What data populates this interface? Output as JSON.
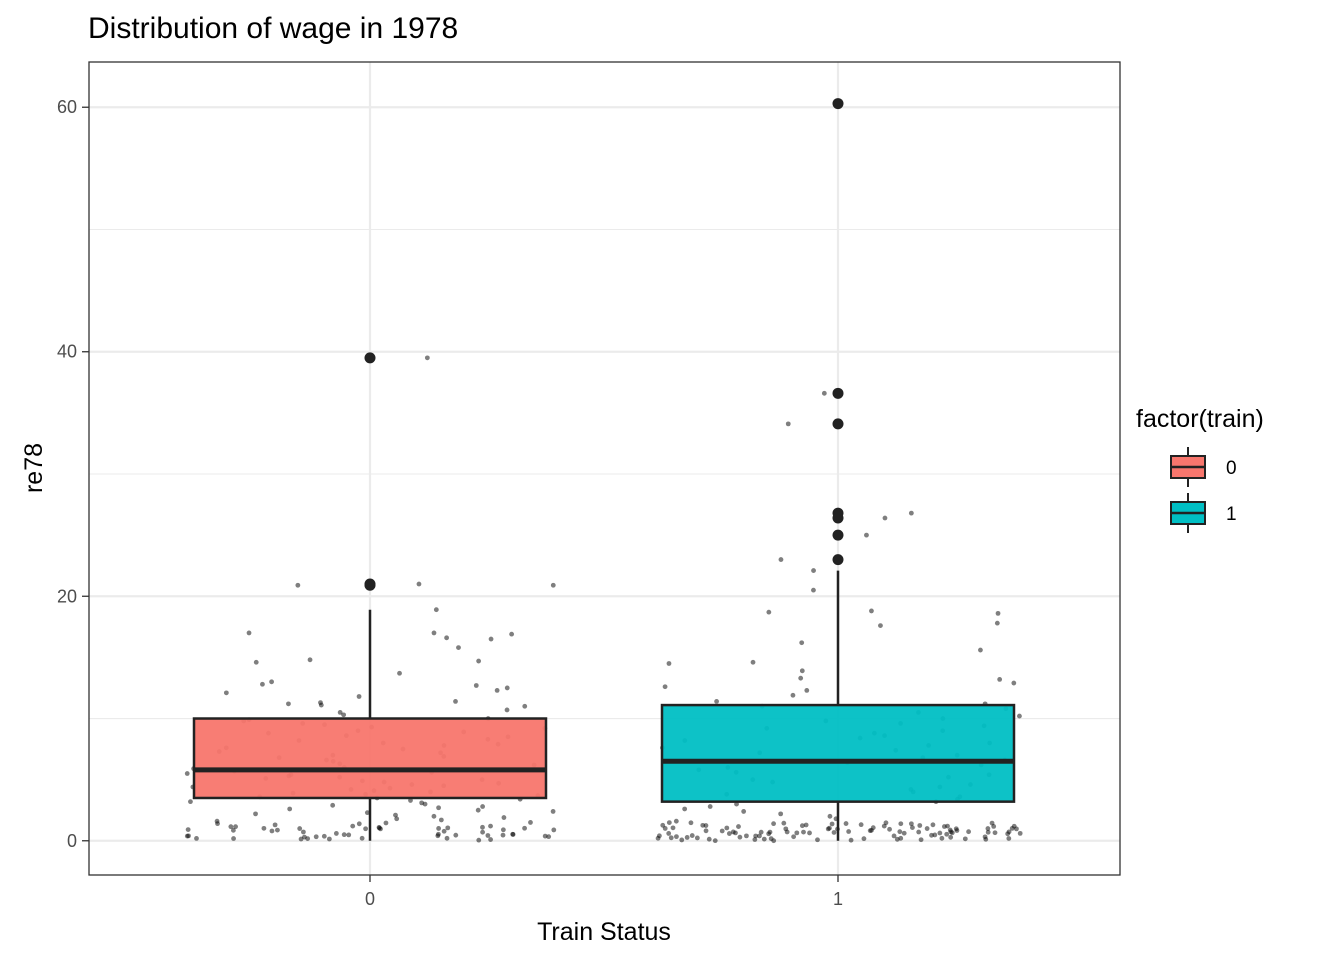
{
  "chart_data": {
    "type": "boxplot",
    "title": "Distribution of wage in 1978",
    "xlabel": "Train Status",
    "ylabel": "re78",
    "categories": [
      "0",
      "1"
    ],
    "ylim": [
      -2.8,
      63.7
    ],
    "yticks": [
      0,
      20,
      40,
      60
    ],
    "grid": true,
    "legend": {
      "title": "factor(train)",
      "position": "right",
      "entries": [
        {
          "label": "0",
          "color": "#F8766D"
        },
        {
          "label": "1",
          "color": "#00BFC4"
        }
      ]
    },
    "boxes": [
      {
        "category": "0",
        "min": 0,
        "q1": 3.5,
        "median": 5.8,
        "q3": 10.0,
        "max": 18.9,
        "outliers": [
          20.9,
          21.0,
          39.5
        ],
        "color": "#F8766D"
      },
      {
        "category": "1",
        "min": 0,
        "q1": 3.2,
        "median": 6.5,
        "q3": 11.1,
        "max": 22.1,
        "outliers": [
          23.0,
          25.0,
          26.4,
          26.8,
          34.1,
          36.6,
          60.3
        ],
        "color": "#00BFC4"
      }
    ],
    "jitter": [
      {
        "category": "0",
        "y": [
          39.5,
          20.9,
          21.0,
          20.9,
          18.9,
          17.0,
          17.0,
          16.9,
          16.6,
          16.5,
          15.8,
          14.8,
          14.7,
          14.6,
          13.7,
          13.0,
          12.8,
          12.7,
          12.5,
          12.3,
          12.1,
          11.8,
          11.4,
          11.3,
          11.2,
          11.1,
          11.0,
          10.7,
          10.5,
          10.3,
          10.0,
          9.9,
          9.8,
          9.6,
          9.5,
          9.3,
          9.2,
          9.0,
          8.9,
          8.8,
          8.6,
          8.5,
          8.3,
          8.2,
          8.0,
          7.9,
          7.8,
          7.6,
          7.5,
          7.3,
          7.2,
          7.0,
          6.9,
          6.8,
          6.6,
          6.5,
          6.3,
          6.2,
          6.0,
          5.9,
          5.8,
          5.7,
          5.6,
          5.5,
          5.4,
          5.3,
          5.2,
          5.1,
          5.0,
          4.9,
          4.8,
          4.7,
          4.6,
          4.5,
          4.4,
          4.3,
          4.2,
          4.1,
          4.0,
          3.9,
          3.8,
          3.7,
          3.6,
          3.5,
          3.4,
          3.3,
          3.2,
          3.1,
          3.0,
          2.9,
          2.8,
          2.7,
          2.6,
          2.5,
          2.4,
          2.3,
          2.2,
          2.1,
          2.0,
          1.9,
          1.8,
          1.7,
          1.6,
          1.5,
          1.4,
          1.3,
          1.2,
          1.1,
          1.0,
          0.9,
          0.8,
          0.7,
          0.6,
          0.5,
          0.4,
          0.3,
          0.2,
          0.1,
          0.05,
          0,
          0,
          0,
          0,
          0,
          0,
          0,
          0,
          0,
          0,
          0,
          0,
          0,
          0,
          0,
          0,
          0,
          0,
          0,
          0,
          0,
          0,
          0,
          0,
          0,
          0,
          0,
          0,
          0,
          0,
          0,
          0,
          0,
          0,
          0,
          0,
          0,
          0
        ]
      },
      {
        "category": "1",
        "y": [
          60.3,
          36.6,
          34.1,
          26.8,
          26.4,
          25.0,
          23.0,
          22.1,
          20.5,
          18.8,
          18.7,
          18.6,
          17.8,
          17.6,
          16.2,
          15.6,
          14.6,
          14.5,
          13.9,
          13.3,
          13.2,
          12.9,
          12.6,
          12.3,
          11.9,
          11.4,
          11.2,
          11.0,
          10.8,
          10.5,
          10.2,
          10.0,
          9.8,
          9.6,
          9.4,
          9.2,
          9.0,
          8.8,
          8.6,
          8.4,
          8.2,
          8.0,
          7.8,
          7.6,
          7.4,
          7.2,
          7.0,
          6.8,
          6.6,
          6.4,
          6.2,
          6.0,
          5.8,
          5.6,
          5.4,
          5.2,
          5.0,
          4.8,
          4.6,
          4.4,
          4.2,
          4.0,
          3.8,
          3.6,
          3.4,
          3.2,
          3.0,
          2.8,
          2.6,
          2.4,
          2.2,
          2.0,
          1.8,
          1.6,
          1.4,
          1.2,
          1.0,
          0.8,
          0.6,
          0.4,
          0.2,
          0,
          0,
          0,
          0,
          0,
          0,
          0,
          0,
          0,
          0,
          0,
          0,
          0,
          0,
          0,
          0,
          0,
          0,
          0,
          0,
          0,
          0,
          0,
          0,
          0,
          0,
          0,
          0,
          0,
          0,
          0,
          0,
          0,
          0,
          0,
          0,
          0,
          0,
          0,
          0,
          0,
          0,
          0,
          0,
          0,
          0,
          0,
          0,
          0,
          0,
          0,
          0,
          0,
          0,
          0,
          0,
          0,
          0,
          0,
          0,
          0,
          0,
          0,
          0,
          0,
          0,
          0,
          0,
          0,
          0,
          0,
          0,
          0,
          0,
          0,
          0,
          0,
          0,
          0,
          0,
          0,
          0,
          0,
          0,
          0,
          0,
          0,
          0,
          0,
          0,
          0,
          0,
          0,
          0,
          0,
          0,
          0,
          0
        ]
      }
    ]
  }
}
